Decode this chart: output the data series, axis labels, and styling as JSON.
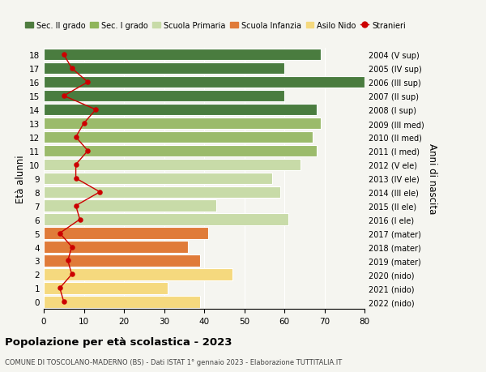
{
  "ages": [
    0,
    1,
    2,
    3,
    4,
    5,
    6,
    7,
    8,
    9,
    10,
    11,
    12,
    13,
    14,
    15,
    16,
    17,
    18
  ],
  "right_labels": [
    "2022 (nido)",
    "2021 (nido)",
    "2020 (nido)",
    "2019 (mater)",
    "2018 (mater)",
    "2017 (mater)",
    "2016 (I ele)",
    "2015 (II ele)",
    "2014 (III ele)",
    "2013 (IV ele)",
    "2012 (V ele)",
    "2011 (I med)",
    "2010 (II med)",
    "2009 (III med)",
    "2008 (I sup)",
    "2007 (II sup)",
    "2006 (III sup)",
    "2005 (IV sup)",
    "2004 (V sup)"
  ],
  "bar_values": [
    39,
    31,
    47,
    39,
    36,
    41,
    61,
    43,
    59,
    57,
    64,
    68,
    67,
    69,
    68,
    60,
    80,
    60,
    69
  ],
  "bar_colors": [
    "#f5d97e",
    "#f5d97e",
    "#f5d97e",
    "#e07b39",
    "#e07b39",
    "#e07b39",
    "#c8dba8",
    "#c8dba8",
    "#c8dba8",
    "#c8dba8",
    "#c8dba8",
    "#9bbb6b",
    "#9bbb6b",
    "#9bbb6b",
    "#4a7c3f",
    "#4a7c3f",
    "#4a7c3f",
    "#4a7c3f",
    "#4a7c3f"
  ],
  "stranieri_values": [
    5,
    4,
    7,
    6,
    7,
    4,
    9,
    8,
    14,
    8,
    8,
    11,
    8,
    10,
    13,
    5,
    11,
    7,
    5
  ],
  "xlim": [
    0,
    80
  ],
  "ylabel": "Età alunni",
  "right_ylabel": "Anni di nascita",
  "title": "Popolazione per età scolastica - 2023",
  "subtitle": "COMUNE DI TOSCOLANO-MADERNO (BS) - Dati ISTAT 1° gennaio 2023 - Elaborazione TUTTITALIA.IT",
  "legend_items": [
    {
      "label": "Sec. II grado",
      "color": "#4e7c3f"
    },
    {
      "label": "Sec. I grado",
      "color": "#8fb55a"
    },
    {
      "label": "Scuola Primaria",
      "color": "#c8dba8"
    },
    {
      "label": "Scuola Infanzia",
      "color": "#e07b39"
    },
    {
      "label": "Asilo Nido",
      "color": "#f5d97e"
    },
    {
      "label": "Stranieri",
      "color": "#cc0000"
    }
  ],
  "background_color": "#f5f5f0",
  "bar_edge_color": "#ffffff",
  "xticks": [
    0,
    10,
    20,
    30,
    40,
    50,
    60,
    70,
    80
  ]
}
